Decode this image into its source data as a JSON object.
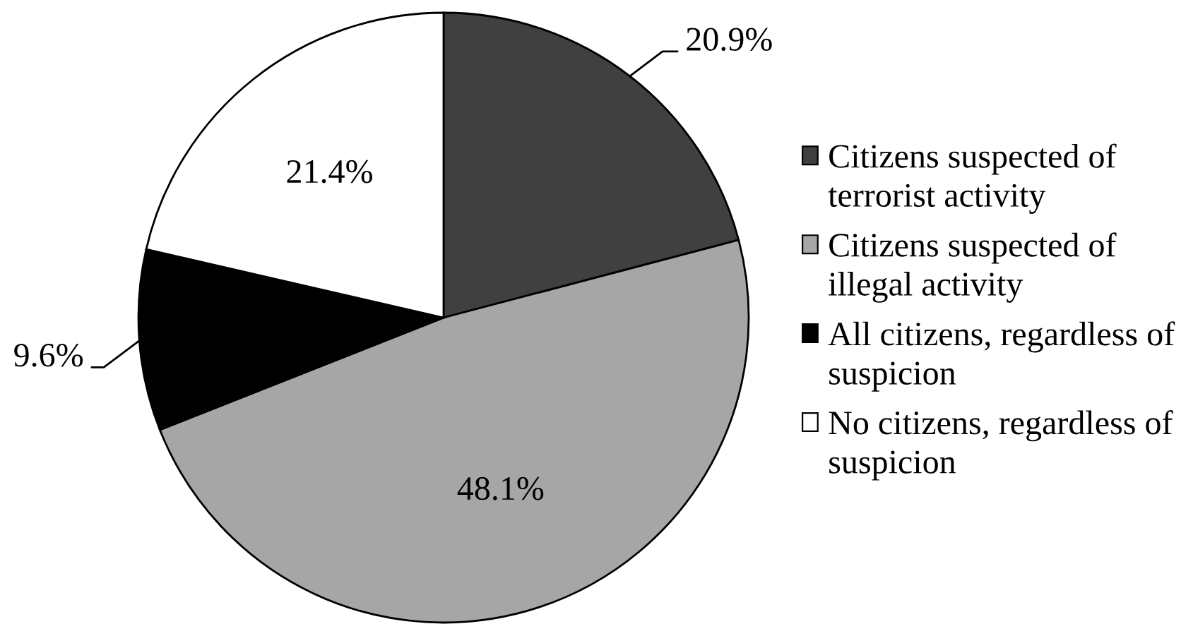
{
  "chart_data": {
    "type": "pie",
    "categories": [
      "Citizens suspected of\nterrorist activity",
      "Citizens suspected of\nillegal activity",
      "All citizens, regardless of\nsuspicion",
      "No citizens, regardless of\nsuspicion"
    ],
    "values": [
      20.9,
      48.1,
      9.6,
      21.4
    ],
    "colors": [
      "#404040",
      "#a6a6a6",
      "#000000",
      "#ffffff"
    ],
    "value_labels": [
      "20.9%",
      "48.1%",
      "9.6%",
      "21.4%"
    ],
    "legend": "right"
  }
}
